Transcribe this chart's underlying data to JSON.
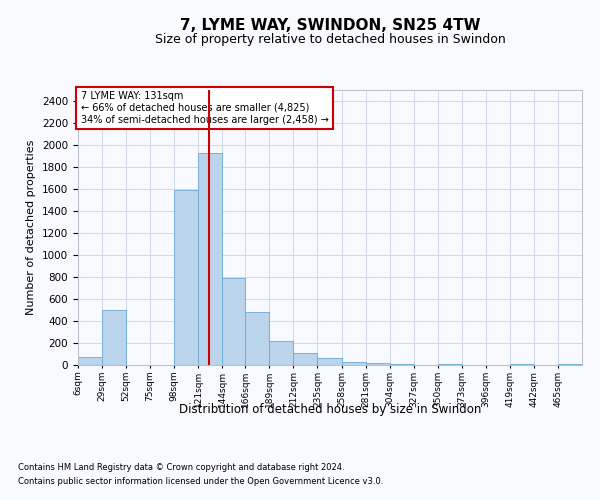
{
  "title": "7, LYME WAY, SWINDON, SN25 4TW",
  "subtitle": "Size of property relative to detached houses in Swindon",
  "xlabel": "Distribution of detached houses by size in Swindon",
  "ylabel": "Number of detached properties",
  "footnote1": "Contains HM Land Registry data © Crown copyright and database right 2024.",
  "footnote2": "Contains public sector information licensed under the Open Government Licence v3.0.",
  "annotation_line1": "7 LYME WAY: 131sqm",
  "annotation_line2": "← 66% of detached houses are smaller (4,825)",
  "annotation_line3": "34% of semi-detached houses are larger (2,458) →",
  "bar_color": "#bad4ec",
  "bar_edge_color": "#6aaad4",
  "vline_color": "#cc0000",
  "vline_x": 131,
  "categories": [
    "6sqm",
    "29sqm",
    "52sqm",
    "75sqm",
    "98sqm",
    "121sqm",
    "144sqm",
    "166sqm",
    "189sqm",
    "212sqm",
    "235sqm",
    "258sqm",
    "281sqm",
    "304sqm",
    "327sqm",
    "350sqm",
    "373sqm",
    "396sqm",
    "419sqm",
    "442sqm",
    "465sqm"
  ],
  "bin_left": [
    6,
    29,
    52,
    75,
    98,
    121,
    144,
    166,
    189,
    212,
    235,
    258,
    281,
    304,
    327,
    350,
    373,
    396,
    419,
    442,
    465
  ],
  "bin_right": [
    29,
    52,
    75,
    98,
    121,
    144,
    166,
    189,
    212,
    235,
    258,
    281,
    304,
    327,
    350,
    373,
    396,
    419,
    442,
    465,
    488
  ],
  "bar_heights": [
    70,
    500,
    0,
    0,
    1590,
    1930,
    790,
    480,
    215,
    110,
    60,
    30,
    15,
    5,
    0,
    5,
    0,
    0,
    5,
    0,
    5
  ],
  "ylim": [
    0,
    2500
  ],
  "yticks": [
    0,
    200,
    400,
    600,
    800,
    1000,
    1200,
    1400,
    1600,
    1800,
    2000,
    2200,
    2400
  ],
  "background_color": "#f8f8ff",
  "grid_color": "#d0d8ea",
  "annotation_box_color": "#ffffff",
  "annotation_box_edge": "#cc0000",
  "title_fontsize": 11,
  "subtitle_fontsize": 9
}
